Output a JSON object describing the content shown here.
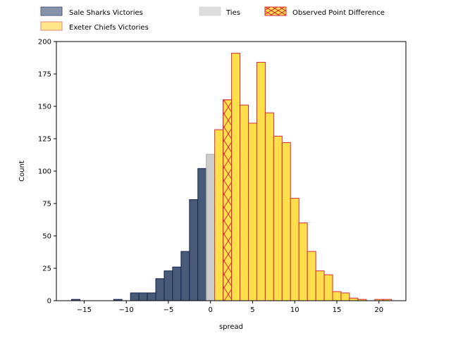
{
  "chart_data": {
    "type": "bar",
    "xlabel": "spread",
    "ylabel": "Count",
    "xlim": [
      -18.3,
      23.2
    ],
    "ylim": [
      0,
      200
    ],
    "xticks": [
      -15,
      -10,
      -5,
      0,
      5,
      10,
      15,
      20
    ],
    "yticks": [
      0,
      25,
      50,
      75,
      100,
      125,
      150,
      175,
      200
    ],
    "legend_position": "top",
    "series": [
      {
        "name": "Sale Sharks Victories",
        "color": "#475a78",
        "edge": "#1a2350",
        "bins": [
          {
            "x0": -16.5,
            "x1": -15.5,
            "count": 1
          },
          {
            "x0": -11.5,
            "x1": -10.5,
            "count": 1
          },
          {
            "x0": -9.5,
            "x1": -8.5,
            "count": 6
          },
          {
            "x0": -8.5,
            "x1": -7.5,
            "count": 6
          },
          {
            "x0": -7.5,
            "x1": -6.5,
            "count": 6
          },
          {
            "x0": -6.5,
            "x1": -5.5,
            "count": 17
          },
          {
            "x0": -5.5,
            "x1": -4.5,
            "count": 23
          },
          {
            "x0": -4.5,
            "x1": -3.5,
            "count": 26
          },
          {
            "x0": -3.5,
            "x1": -2.5,
            "count": 38
          },
          {
            "x0": -2.5,
            "x1": -1.5,
            "count": 78
          },
          {
            "x0": -1.5,
            "x1": -0.5,
            "count": 102
          }
        ]
      },
      {
        "name": "Ties",
        "color": "#cccccc",
        "edge": "#aaaaaa",
        "bins": [
          {
            "x0": -0.5,
            "x1": 0.5,
            "count": 113
          }
        ]
      },
      {
        "name": "Exeter Chiefs Victories",
        "color": "#ffe04a",
        "edge": "#d42a3c",
        "bins": [
          {
            "x0": 0.5,
            "x1": 1.5,
            "count": 132
          },
          {
            "x0": 1.5,
            "x1": 2.5,
            "count": 155
          },
          {
            "x0": 2.5,
            "x1": 3.5,
            "count": 191
          },
          {
            "x0": 3.5,
            "x1": 4.5,
            "count": 151
          },
          {
            "x0": 4.5,
            "x1": 5.5,
            "count": 137
          },
          {
            "x0": 5.5,
            "x1": 6.5,
            "count": 184
          },
          {
            "x0": 6.5,
            "x1": 7.5,
            "count": 145
          },
          {
            "x0": 7.5,
            "x1": 8.5,
            "count": 127
          },
          {
            "x0": 8.5,
            "x1": 9.5,
            "count": 122
          },
          {
            "x0": 9.5,
            "x1": 10.5,
            "count": 79
          },
          {
            "x0": 10.5,
            "x1": 11.5,
            "count": 60
          },
          {
            "x0": 11.5,
            "x1": 12.5,
            "count": 38
          },
          {
            "x0": 12.5,
            "x1": 13.5,
            "count": 23
          },
          {
            "x0": 13.5,
            "x1": 14.5,
            "count": 20
          },
          {
            "x0": 14.5,
            "x1": 15.5,
            "count": 7
          },
          {
            "x0": 15.5,
            "x1": 16.5,
            "count": 6
          },
          {
            "x0": 16.5,
            "x1": 17.5,
            "count": 2
          },
          {
            "x0": 17.5,
            "x1": 18.5,
            "count": 1
          },
          {
            "x0": 19.5,
            "x1": 20.5,
            "count": 1
          },
          {
            "x0": 20.5,
            "x1": 21.5,
            "count": 1
          }
        ]
      }
    ],
    "highlight": {
      "name": "Observed Point Difference",
      "x0": 1.5,
      "x1": 2.5,
      "count": 155,
      "color": "#ffe04a",
      "edge": "#d42a3c",
      "hatch": "x"
    },
    "legend": [
      {
        "label": "Sale Sharks Victories",
        "swatch": "sale"
      },
      {
        "label": "Ties",
        "swatch": "ties"
      },
      {
        "label": "Observed Point Difference",
        "swatch": "observed"
      },
      {
        "label": "Exeter Chiefs Victories",
        "swatch": "exeter"
      }
    ]
  }
}
